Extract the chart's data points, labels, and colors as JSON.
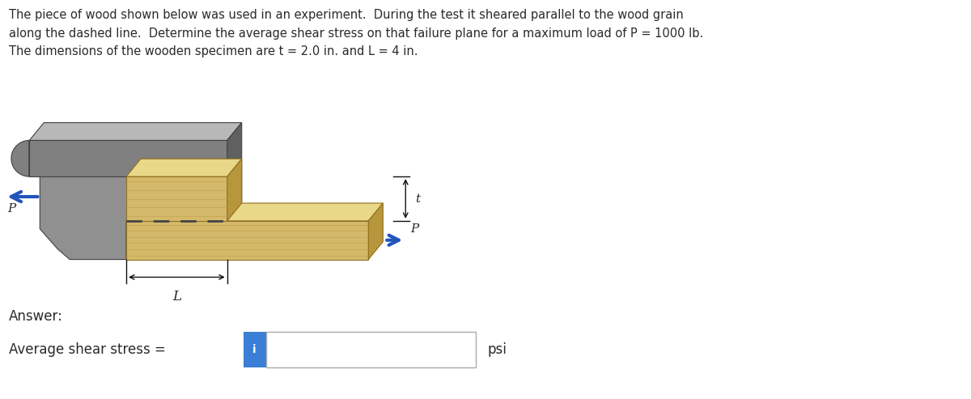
{
  "title_text": "The piece of wood shown below was used in an experiment.  During the test it sheared parallel to the wood grain\nalong the dashed line.  Determine the average shear stress on that failure plane for a maximum load of P = 1000 lb.\nThe dimensions of the wooden specimen are t = 2.0 in. and L = 4 in.",
  "answer_label": "Answer:",
  "stress_label": "Average shear stress = ",
  "unit_label": "psi",
  "input_box_color": "#ffffff",
  "input_border_color": "#aaaaaa",
  "info_icon_color": "#3a7fd5",
  "info_icon_text": "i",
  "background_color": "#ffffff",
  "text_color": "#2a2a2a",
  "wood_front_color": "#d4b96a",
  "wood_top_color": "#c8a84b",
  "wood_side_color": "#b8963c",
  "wood_light_color": "#e8d888",
  "wood_grain_color": "#b8963c",
  "metal_gray": "#909090",
  "metal_dark": "#606060",
  "metal_light": "#b8b8b8",
  "metal_mid": "#787878",
  "arrow_color": "#2255bb",
  "dashed_color": "#444444",
  "dim_color": "#111111"
}
